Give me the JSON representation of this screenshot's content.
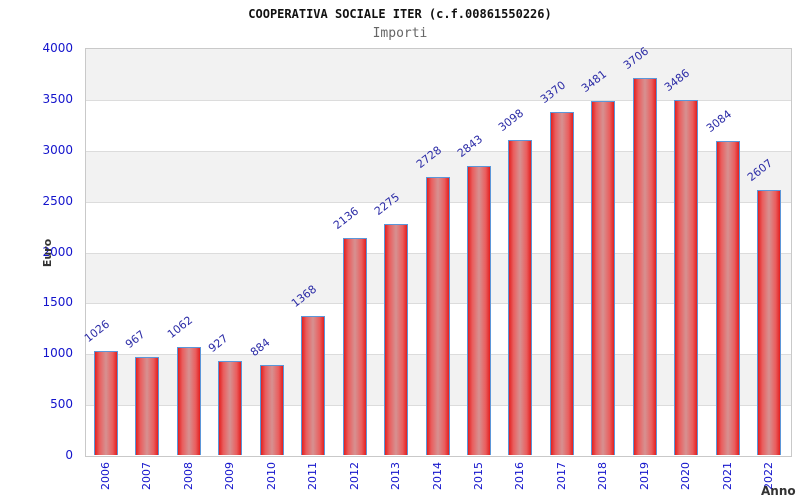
{
  "chart_data": {
    "type": "bar",
    "title": "COOPERATIVA SOCIALE ITER (c.f.00861550226)",
    "subtitle": "Importi",
    "xlabel": "Anno",
    "ylabel": "Euro",
    "categories": [
      "2006",
      "2007",
      "2008",
      "2009",
      "2010",
      "2011",
      "2012",
      "2013",
      "2014",
      "2015",
      "2016",
      "2017",
      "2018",
      "2019",
      "2020",
      "2021",
      "2022"
    ],
    "values": [
      1026,
      967,
      1062,
      927,
      884,
      1368,
      2136,
      2275,
      2728,
      2843,
      3098,
      3370,
      3481,
      3706,
      3486,
      3084,
      2607
    ],
    "ylim": [
      0,
      4000
    ],
    "ytick_step": 500,
    "yticks": [
      0,
      500,
      1000,
      1500,
      2000,
      2500,
      3000,
      3500,
      4000
    ],
    "grid": "horizontal-bands",
    "legend": "none",
    "value_labels": "above-bars-rotated"
  },
  "colors": {
    "bar_edge": "#e22020",
    "bar_highlight": "#ea5e5e",
    "bar_mid": "#d69191",
    "bar_border": "#5b96d9",
    "tick_label": "#1414cc",
    "value_label": "#2b2ba6",
    "band_gray": "#f2f2f2",
    "band_white": "#ffffff",
    "gridline": "#dcdcdc",
    "plot_border": "#c9c9c9",
    "title": "#111111",
    "subtitle": "#666666",
    "axis_title": "#333333",
    "background": "#ffffff"
  }
}
